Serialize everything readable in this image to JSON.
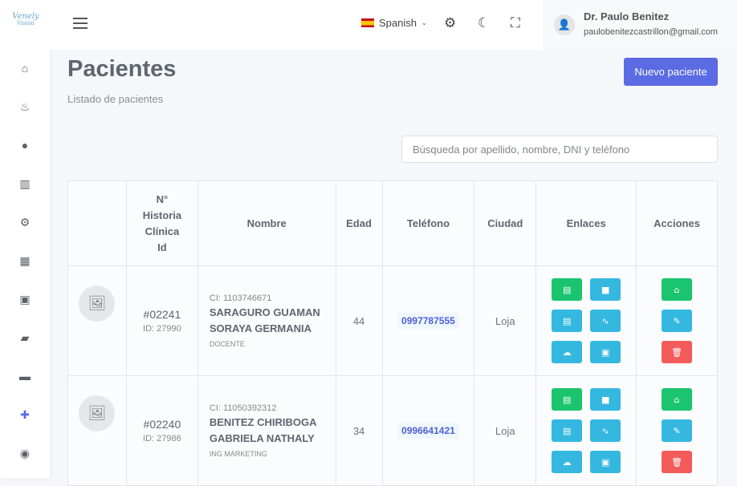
{
  "brand": {
    "line1": "Venely",
    "line2": "Visión"
  },
  "sidebar": {
    "items": [
      {
        "icon": "home-icon",
        "glyph": "⌂"
      },
      {
        "icon": "birthday-cake-icon",
        "glyph": "♨"
      },
      {
        "icon": "user-circle-icon",
        "glyph": "●"
      },
      {
        "icon": "barcode-icon",
        "glyph": "▥"
      },
      {
        "icon": "gear-icon",
        "glyph": "⚙"
      },
      {
        "icon": "calculator-icon",
        "glyph": "▦"
      },
      {
        "icon": "calendar-check-icon",
        "glyph": "▣"
      },
      {
        "icon": "folder-open-icon",
        "glyph": "▰"
      },
      {
        "icon": "archive-icon",
        "glyph": "▬"
      },
      {
        "icon": "medical-kit-icon",
        "glyph": "✚"
      },
      {
        "icon": "eye-icon",
        "glyph": "◉"
      }
    ]
  },
  "header": {
    "language": "Spanish",
    "user_name": "Dr. Paulo Benitez",
    "user_email": "paulobenitezcastrillon@gmail.com"
  },
  "page": {
    "title": "Pacientes",
    "subtitle": "Listado de pacientes",
    "new_button": "Nuevo paciente",
    "search_placeholder": "Búsqueda por apellido, nombre, DNI y teléfono"
  },
  "table": {
    "headers": [
      "",
      "N° Historia Clínica Id",
      "Nombre",
      "Edad",
      "Teléfono",
      "Ciudad",
      "Enlaces",
      "Acciones"
    ],
    "rows": [
      {
        "history": "#02241",
        "id": "ID: 27990",
        "ci": "CI: 1103746671",
        "name": "SARAGURO GUAMAN SORAYA GERMANIA",
        "occupation": "DOCENTE",
        "age": "44",
        "phone": "0997787555",
        "city": "Loja"
      },
      {
        "history": "#02240",
        "id": "ID: 27986",
        "ci": "CI: 11050392312",
        "name": "BENITEZ CHIRIBOGA GABRIELA NATHALY",
        "occupation": "ING MARKETING",
        "age": "34",
        "phone": "0996641421",
        "city": "Loja"
      }
    ]
  },
  "colors": {
    "primary": "#5a6be3",
    "success": "#1bc46e",
    "info": "#35b8e0",
    "danger": "#f35b5b"
  }
}
